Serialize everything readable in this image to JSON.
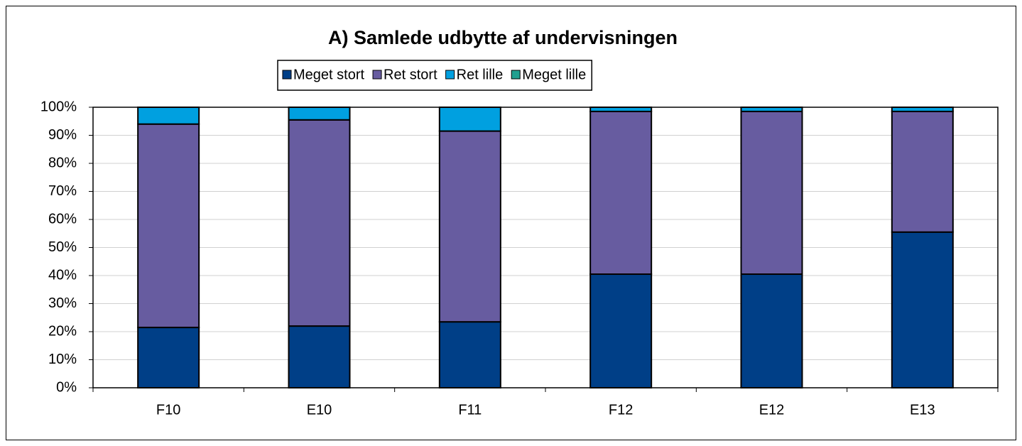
{
  "chart_data": {
    "type": "stacked_bar",
    "title": "A) Samlede udbytte af undervisningen",
    "categories": [
      "F10",
      "E10",
      "F11",
      "F12",
      "E12",
      "E13"
    ],
    "series": [
      {
        "name": "Meget stort",
        "color": "#003f87",
        "values": [
          21.5,
          22,
          23.5,
          40.5,
          40.5,
          55.5
        ]
      },
      {
        "name": "Ret stort",
        "color": "#675ca0",
        "values": [
          72.5,
          73.5,
          68,
          58,
          58,
          43
        ]
      },
      {
        "name": "Ret lille",
        "color": "#00a0e0",
        "values": [
          6,
          4.5,
          8.5,
          1.5,
          1.5,
          1.5
        ]
      },
      {
        "name": "Meget lille",
        "color": "#20a090",
        "values": [
          0,
          0,
          0,
          0,
          0,
          0
        ]
      }
    ],
    "ylim": [
      0,
      100
    ],
    "yticks": [
      {
        "value": 0,
        "label": "0%"
      },
      {
        "value": 10,
        "label": "10%"
      },
      {
        "value": 20,
        "label": "20%"
      },
      {
        "value": 30,
        "label": "30%"
      },
      {
        "value": 40,
        "label": "40%"
      },
      {
        "value": 50,
        "label": "50%"
      },
      {
        "value": 60,
        "label": "60%"
      },
      {
        "value": 70,
        "label": "70%"
      },
      {
        "value": 80,
        "label": "80%"
      },
      {
        "value": 90,
        "label": "90%"
      },
      {
        "value": 100,
        "label": "100%"
      }
    ],
    "grid": true,
    "legend": "top"
  }
}
